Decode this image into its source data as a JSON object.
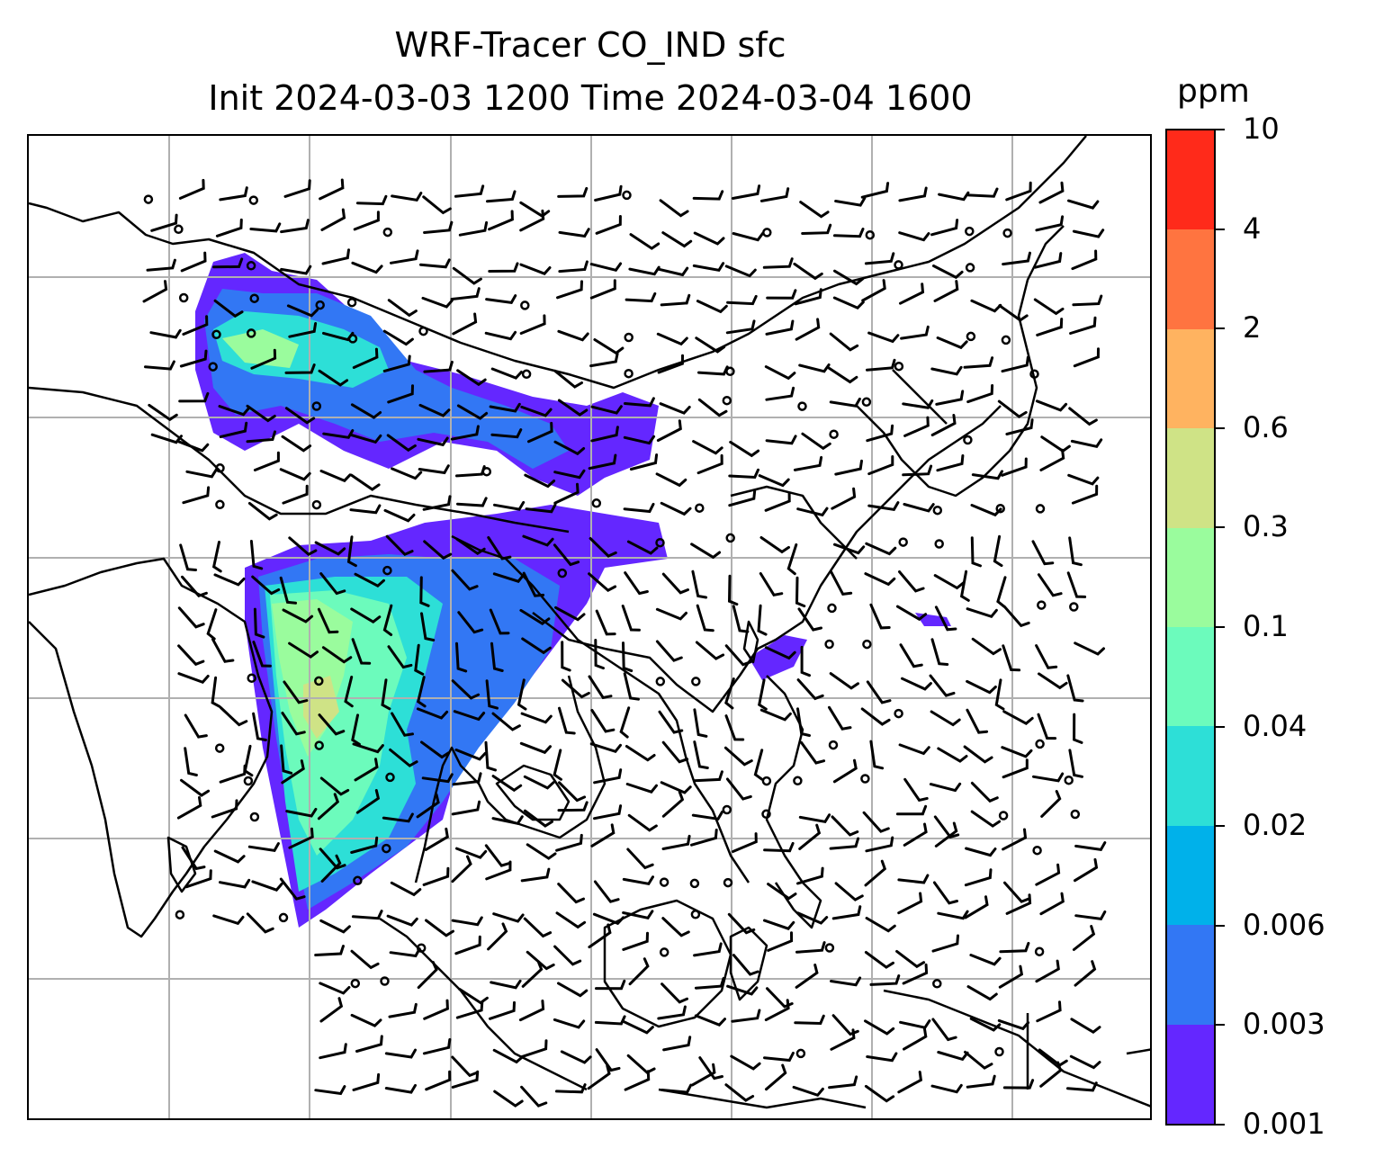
{
  "title": {
    "line1": "WRF-Tracer CO_IND sfc",
    "line2": "Init 2024-03-03 1200 Time 2024-03-04 1600"
  },
  "colorbar": {
    "units": "ppm",
    "tick_labels": [
      "0.001",
      "0.003",
      "0.006",
      "0.02",
      "0.04",
      "0.1",
      "0.3",
      "0.6",
      "2",
      "4",
      "10"
    ],
    "colors": [
      "#6427ff",
      "#3277f4",
      "#00b1ea",
      "#2ddfd7",
      "#6cfbbc",
      "#9afc9d",
      "#cfe386",
      "#ffb360",
      "#ff7440",
      "#ff2a1a"
    ]
  },
  "map": {
    "gridlines": true,
    "basemap": "coastlines and country borders",
    "overlay": "filled contours of CO tracer concentration with wind barbs and calm circles"
  }
}
